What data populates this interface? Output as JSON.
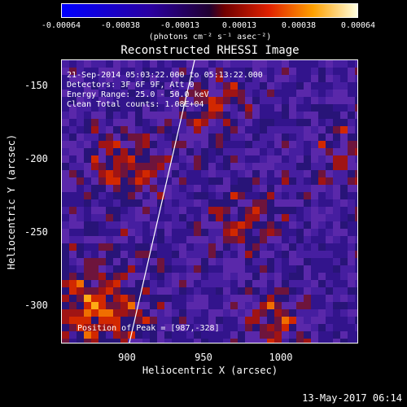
{
  "colorbar": {
    "ticks": [
      "-0.00064",
      "-0.00038",
      "-0.00013",
      "0.00013",
      "0.00038",
      "0.00064"
    ],
    "units": "(photons cm⁻² s⁻¹ asec⁻²)"
  },
  "title": "Reconstructed RHESSI Image",
  "info": {
    "line1": "21-Sep-2014 05:03:22.000 to 05:13:22.000",
    "line2": "Detectors: 3F 6F 9F, Att 0",
    "line3": "Energy Range: 25.0 - 50.0 keV",
    "line4": "Clean     Total counts: 1.08E+04"
  },
  "peak": "Position of Peak = [987,-328]",
  "x_axis": {
    "label": "Heliocentric X (arcsec)",
    "ticks": [
      "900",
      "950",
      "1000"
    ]
  },
  "y_axis": {
    "label": "Heliocentric Y (arcsec)",
    "ticks": [
      "-150",
      "-200",
      "-250",
      "-300"
    ]
  },
  "datestamp": "13-May-2017 06:14"
}
